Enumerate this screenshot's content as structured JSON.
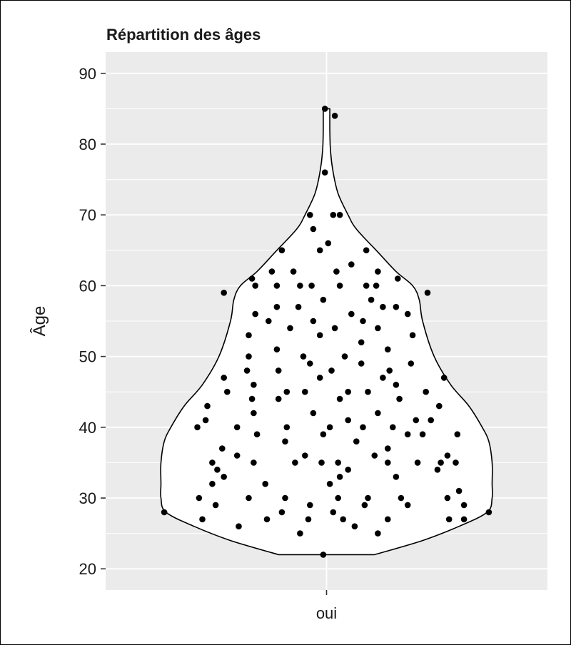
{
  "chart_data": {
    "type": "violin",
    "title": "Répartition des âges",
    "xlabel": "",
    "ylabel": "Âge",
    "categories": [
      "oui"
    ],
    "ylim": [
      17,
      93
    ],
    "yticks": [
      20,
      30,
      40,
      50,
      60,
      70,
      80,
      90
    ],
    "ytick_labels": [
      "20",
      "30",
      "40",
      "50",
      "60",
      "70",
      "80",
      "90"
    ],
    "xtick_labels": [
      "oui"
    ],
    "grid": true,
    "legend": "none",
    "background_color": "#ebebeb",
    "grid_color": "#ffffff",
    "violin_fill": "#ffffff",
    "violin_outline": "#000000",
    "point_color": "#000000",
    "density_profile": [
      {
        "age": 22,
        "w": 0.29
      },
      {
        "age": 24,
        "w": 0.58
      },
      {
        "age": 26,
        "w": 0.8
      },
      {
        "age": 28,
        "w": 0.97
      },
      {
        "age": 30,
        "w": 1.0
      },
      {
        "age": 32,
        "w": 1.0
      },
      {
        "age": 35,
        "w": 1.0
      },
      {
        "age": 38,
        "w": 0.98
      },
      {
        "age": 40,
        "w": 0.94
      },
      {
        "age": 43,
        "w": 0.86
      },
      {
        "age": 46,
        "w": 0.75
      },
      {
        "age": 50,
        "w": 0.65
      },
      {
        "age": 55,
        "w": 0.58
      },
      {
        "age": 58,
        "w": 0.56
      },
      {
        "age": 60,
        "w": 0.52
      },
      {
        "age": 62,
        "w": 0.42
      },
      {
        "age": 65,
        "w": 0.3
      },
      {
        "age": 68,
        "w": 0.18
      },
      {
        "age": 70,
        "w": 0.13
      },
      {
        "age": 73,
        "w": 0.07
      },
      {
        "age": 76,
        "w": 0.04
      },
      {
        "age": 79,
        "w": 0.024
      },
      {
        "age": 82,
        "w": 0.02
      },
      {
        "age": 85,
        "w": 0.02
      }
    ],
    "points": [
      {
        "j": -0.01,
        "age": 85
      },
      {
        "j": 0.05,
        "age": 84
      },
      {
        "j": -0.01,
        "age": 76
      },
      {
        "j": -0.1,
        "age": 70
      },
      {
        "j": 0.04,
        "age": 70
      },
      {
        "j": 0.08,
        "age": 70
      },
      {
        "j": -0.08,
        "age": 68
      },
      {
        "j": 0.01,
        "age": 66
      },
      {
        "j": -0.04,
        "age": 65
      },
      {
        "j": -0.27,
        "age": 65
      },
      {
        "j": 0.24,
        "age": 65
      },
      {
        "j": 0.15,
        "age": 63
      },
      {
        "j": -0.33,
        "age": 62
      },
      {
        "j": -0.2,
        "age": 62
      },
      {
        "j": 0.06,
        "age": 62
      },
      {
        "j": 0.31,
        "age": 62
      },
      {
        "j": -0.45,
        "age": 61
      },
      {
        "j": 0.43,
        "age": 61
      },
      {
        "j": -0.43,
        "age": 60
      },
      {
        "j": -0.3,
        "age": 60
      },
      {
        "j": -0.16,
        "age": 60
      },
      {
        "j": -0.09,
        "age": 60
      },
      {
        "j": 0.08,
        "age": 60
      },
      {
        "j": 0.24,
        "age": 60
      },
      {
        "j": 0.3,
        "age": 60
      },
      {
        "j": -0.62,
        "age": 59
      },
      {
        "j": 0.61,
        "age": 59
      },
      {
        "j": -0.02,
        "age": 58
      },
      {
        "j": 0.27,
        "age": 58
      },
      {
        "j": -0.3,
        "age": 57
      },
      {
        "j": -0.17,
        "age": 57
      },
      {
        "j": 0.34,
        "age": 57
      },
      {
        "j": 0.42,
        "age": 57
      },
      {
        "j": -0.43,
        "age": 56
      },
      {
        "j": 0.15,
        "age": 56
      },
      {
        "j": 0.49,
        "age": 56
      },
      {
        "j": -0.35,
        "age": 55
      },
      {
        "j": -0.08,
        "age": 55
      },
      {
        "j": 0.22,
        "age": 55
      },
      {
        "j": -0.22,
        "age": 54
      },
      {
        "j": 0.05,
        "age": 54
      },
      {
        "j": 0.31,
        "age": 54
      },
      {
        "j": -0.47,
        "age": 53
      },
      {
        "j": -0.04,
        "age": 53
      },
      {
        "j": 0.52,
        "age": 53
      },
      {
        "j": 0.21,
        "age": 52
      },
      {
        "j": -0.3,
        "age": 51
      },
      {
        "j": 0.37,
        "age": 51
      },
      {
        "j": -0.47,
        "age": 50
      },
      {
        "j": -0.14,
        "age": 50
      },
      {
        "j": 0.11,
        "age": 50
      },
      {
        "j": -0.1,
        "age": 49
      },
      {
        "j": 0.21,
        "age": 49
      },
      {
        "j": 0.51,
        "age": 49
      },
      {
        "j": -0.48,
        "age": 48
      },
      {
        "j": -0.29,
        "age": 48
      },
      {
        "j": 0.03,
        "age": 48
      },
      {
        "j": 0.38,
        "age": 48
      },
      {
        "j": -0.62,
        "age": 47
      },
      {
        "j": -0.04,
        "age": 47
      },
      {
        "j": 0.34,
        "age": 47
      },
      {
        "j": 0.71,
        "age": 47
      },
      {
        "j": -0.44,
        "age": 46
      },
      {
        "j": 0.42,
        "age": 46
      },
      {
        "j": -0.6,
        "age": 45
      },
      {
        "j": -0.24,
        "age": 45
      },
      {
        "j": -0.13,
        "age": 45
      },
      {
        "j": 0.13,
        "age": 45
      },
      {
        "j": 0.25,
        "age": 45
      },
      {
        "j": 0.6,
        "age": 45
      },
      {
        "j": -0.45,
        "age": 44
      },
      {
        "j": -0.29,
        "age": 44
      },
      {
        "j": 0.08,
        "age": 44
      },
      {
        "j": 0.44,
        "age": 44
      },
      {
        "j": -0.72,
        "age": 43
      },
      {
        "j": 0.68,
        "age": 43
      },
      {
        "j": -0.44,
        "age": 42
      },
      {
        "j": -0.08,
        "age": 42
      },
      {
        "j": 0.31,
        "age": 42
      },
      {
        "j": -0.73,
        "age": 41
      },
      {
        "j": 0.13,
        "age": 41
      },
      {
        "j": 0.54,
        "age": 41
      },
      {
        "j": 0.63,
        "age": 41
      },
      {
        "j": -0.78,
        "age": 40
      },
      {
        "j": -0.54,
        "age": 40
      },
      {
        "j": -0.24,
        "age": 40
      },
      {
        "j": 0.02,
        "age": 40
      },
      {
        "j": 0.22,
        "age": 40
      },
      {
        "j": 0.4,
        "age": 40
      },
      {
        "j": -0.42,
        "age": 39
      },
      {
        "j": -0.02,
        "age": 39
      },
      {
        "j": 0.49,
        "age": 39
      },
      {
        "j": 0.58,
        "age": 39
      },
      {
        "j": 0.79,
        "age": 39
      },
      {
        "j": -0.25,
        "age": 38
      },
      {
        "j": 0.18,
        "age": 38
      },
      {
        "j": -0.63,
        "age": 37
      },
      {
        "j": 0.37,
        "age": 37
      },
      {
        "j": -0.54,
        "age": 36
      },
      {
        "j": -0.13,
        "age": 36
      },
      {
        "j": 0.29,
        "age": 36
      },
      {
        "j": 0.73,
        "age": 36
      },
      {
        "j": -0.69,
        "age": 35
      },
      {
        "j": -0.44,
        "age": 35
      },
      {
        "j": -0.19,
        "age": 35
      },
      {
        "j": -0.03,
        "age": 35
      },
      {
        "j": 0.07,
        "age": 35
      },
      {
        "j": 0.37,
        "age": 35
      },
      {
        "j": 0.55,
        "age": 35
      },
      {
        "j": 0.69,
        "age": 35
      },
      {
        "j": 0.78,
        "age": 35
      },
      {
        "j": -0.66,
        "age": 34
      },
      {
        "j": 0.13,
        "age": 34
      },
      {
        "j": 0.67,
        "age": 34
      },
      {
        "j": -0.62,
        "age": 33
      },
      {
        "j": 0.08,
        "age": 33
      },
      {
        "j": 0.42,
        "age": 33
      },
      {
        "j": -0.69,
        "age": 32
      },
      {
        "j": -0.37,
        "age": 32
      },
      {
        "j": 0.02,
        "age": 32
      },
      {
        "j": 0.8,
        "age": 31
      },
      {
        "j": -0.77,
        "age": 30
      },
      {
        "j": -0.47,
        "age": 30
      },
      {
        "j": -0.25,
        "age": 30
      },
      {
        "j": 0.07,
        "age": 30
      },
      {
        "j": 0.25,
        "age": 30
      },
      {
        "j": 0.45,
        "age": 30
      },
      {
        "j": 0.73,
        "age": 30
      },
      {
        "j": -0.67,
        "age": 29
      },
      {
        "j": -0.1,
        "age": 29
      },
      {
        "j": 0.23,
        "age": 29
      },
      {
        "j": 0.49,
        "age": 29
      },
      {
        "j": 0.83,
        "age": 29
      },
      {
        "j": -0.98,
        "age": 28
      },
      {
        "j": -0.27,
        "age": 28
      },
      {
        "j": 0.04,
        "age": 28
      },
      {
        "j": 0.98,
        "age": 28
      },
      {
        "j": -0.75,
        "age": 27
      },
      {
        "j": -0.36,
        "age": 27
      },
      {
        "j": -0.11,
        "age": 27
      },
      {
        "j": 0.1,
        "age": 27
      },
      {
        "j": 0.37,
        "age": 27
      },
      {
        "j": 0.74,
        "age": 27
      },
      {
        "j": 0.83,
        "age": 27
      },
      {
        "j": -0.53,
        "age": 26
      },
      {
        "j": 0.17,
        "age": 26
      },
      {
        "j": -0.16,
        "age": 25
      },
      {
        "j": 0.31,
        "age": 25
      },
      {
        "j": -0.02,
        "age": 22
      }
    ]
  }
}
